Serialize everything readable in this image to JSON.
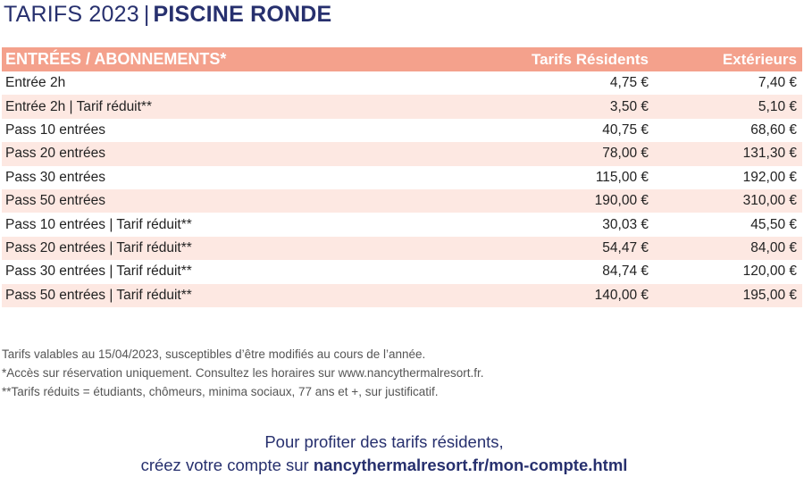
{
  "header": {
    "title_prefix": "TARIFS 2023",
    "separator": "|",
    "title_main": "PISCINE RONDE"
  },
  "table": {
    "columns": [
      "ENTRÉES / ABONNEMENTS*",
      "Tarifs Résidents",
      "Extérieurs"
    ],
    "rows": [
      {
        "label": "Entrée 2h",
        "resident": "4,75 €",
        "exterieur": "7,40 €"
      },
      {
        "label": "Entrée 2h | Tarif réduit**",
        "resident": "3,50 €",
        "exterieur": "5,10 €"
      },
      {
        "label": "Pass 10 entrées",
        "resident": "40,75 €",
        "exterieur": "68,60 €"
      },
      {
        "label": "Pass 20 entrées",
        "resident": "78,00 €",
        "exterieur": "131,30 €"
      },
      {
        "label": "Pass 30 entrées",
        "resident": "115,00 €",
        "exterieur": "192,00 €"
      },
      {
        "label": "Pass 50 entrées",
        "resident": "190,00 €",
        "exterieur": "310,00 €"
      },
      {
        "label": "Pass 10 entrées | Tarif réduit**",
        "resident": "30,03 €",
        "exterieur": "45,50 €"
      },
      {
        "label": "Pass 20 entrées | Tarif réduit**",
        "resident": "54,47 €",
        "exterieur": "84,00 €"
      },
      {
        "label": "Pass 30 entrées | Tarif réduit**",
        "resident": "84,74 €",
        "exterieur": "120,00 €"
      },
      {
        "label": "Pass 50 entrées | Tarif réduit**",
        "resident": "140,00 €",
        "exterieur": "195,00 €"
      }
    ]
  },
  "notes": [
    "Tarifs valables au 15/04/2023, susceptibles d’être modifiés au cours de l’année.",
    "*Accès sur réservation uniquement. Consultez les horaires sur www.nancythermalresort.fr.",
    "**Tarifs réduits = étudiants, chômeurs, minima sociaux, 77 ans et +, sur justificatif."
  ],
  "cta": {
    "line1": "Pour profiter des tarifs résidents,",
    "line2_prefix": "créez votre compte sur",
    "link": "nancythermalresort.fr/mon-compte.html"
  },
  "colors": {
    "header_bg": "#f4a18c",
    "row_alt_bg": "#fde8e2",
    "brand_navy": "#27306e"
  }
}
